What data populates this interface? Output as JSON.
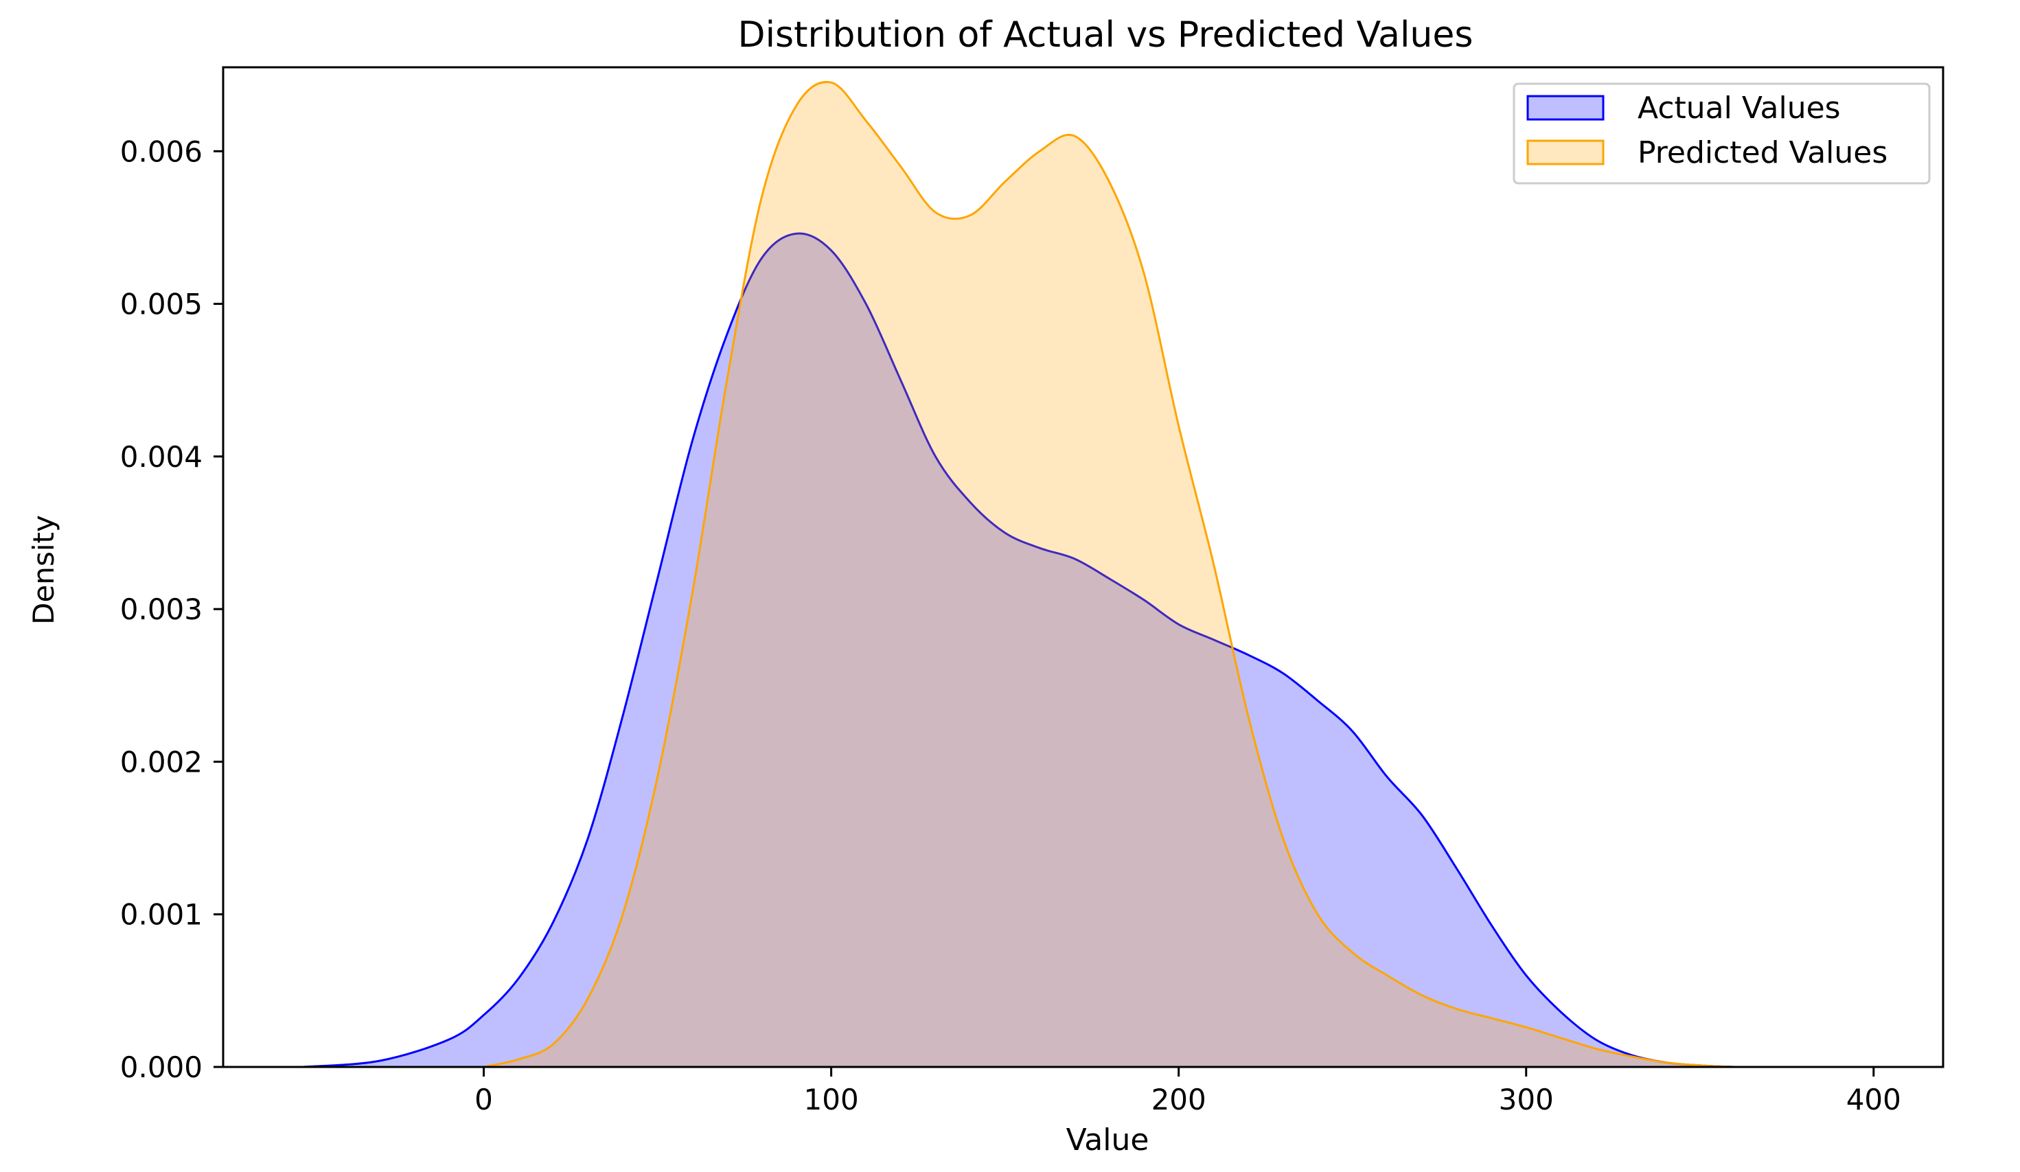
{
  "chart_data": {
    "type": "area",
    "title": "Distribution of Actual vs Predicted Values",
    "xlabel": "Value",
    "ylabel": "Density",
    "xlim": [
      -75,
      420
    ],
    "ylim": [
      0,
      0.00655
    ],
    "xticks": [
      0,
      100,
      200,
      300,
      400
    ],
    "xtick_labels": [
      "0",
      "100",
      "200",
      "300",
      "400"
    ],
    "yticks": [
      0,
      0.001,
      0.002,
      0.003,
      0.004,
      0.005,
      0.006
    ],
    "ytick_labels": [
      "0.000",
      "0.001",
      "0.002",
      "0.003",
      "0.004",
      "0.005",
      "0.006"
    ],
    "grid": false,
    "legend_position": "top-right",
    "series": [
      {
        "name": "Actual Values",
        "color": "#0000ff",
        "fill_color": "#0000ff",
        "fill_opacity": 0.25,
        "x": [
          -52,
          -30,
          -10,
          0,
          10,
          20,
          30,
          40,
          50,
          60,
          70,
          80,
          90,
          100,
          110,
          120,
          130,
          140,
          150,
          160,
          170,
          180,
          190,
          200,
          210,
          220,
          230,
          240,
          250,
          260,
          270,
          280,
          290,
          300,
          310,
          320,
          330,
          340,
          350,
          360,
          370,
          380,
          400
        ],
        "values": [
          0.0,
          4e-05,
          0.00018,
          0.00034,
          0.00058,
          0.00095,
          0.0015,
          0.0023,
          0.0032,
          0.0041,
          0.0048,
          0.0053,
          0.00546,
          0.00535,
          0.005,
          0.0045,
          0.004,
          0.0037,
          0.0035,
          0.0034,
          0.00333,
          0.0032,
          0.00306,
          0.0029,
          0.0028,
          0.0027,
          0.00258,
          0.0024,
          0.0022,
          0.0019,
          0.00165,
          0.0013,
          0.00093,
          0.0006,
          0.00036,
          0.00018,
          8e-05,
          3e-05,
          1e-05,
          0.0,
          0.0,
          0.0,
          0.0
        ]
      },
      {
        "name": "Predicted Values",
        "color": "#ffa500",
        "fill_color": "#ffa500",
        "fill_opacity": 0.25,
        "x": [
          0,
          10,
          20,
          30,
          40,
          50,
          60,
          70,
          80,
          90,
          100,
          110,
          120,
          130,
          140,
          150,
          160,
          170,
          180,
          190,
          200,
          210,
          220,
          230,
          240,
          250,
          260,
          270,
          280,
          290,
          300,
          310,
          320,
          330,
          340,
          350,
          360,
          370,
          380
        ],
        "values": [
          0.0,
          5e-05,
          0.00015,
          0.00045,
          0.001,
          0.0019,
          0.0031,
          0.0045,
          0.0057,
          0.0063,
          0.00645,
          0.0062,
          0.0059,
          0.0056,
          0.00558,
          0.0058,
          0.006,
          0.0061,
          0.0058,
          0.0052,
          0.0042,
          0.0033,
          0.0023,
          0.0015,
          0.001,
          0.00075,
          0.0006,
          0.00047,
          0.00038,
          0.00032,
          0.00026,
          0.00019,
          0.00012,
          7e-05,
          3e-05,
          1e-05,
          0.0,
          0.0,
          0.0
        ]
      }
    ]
  }
}
